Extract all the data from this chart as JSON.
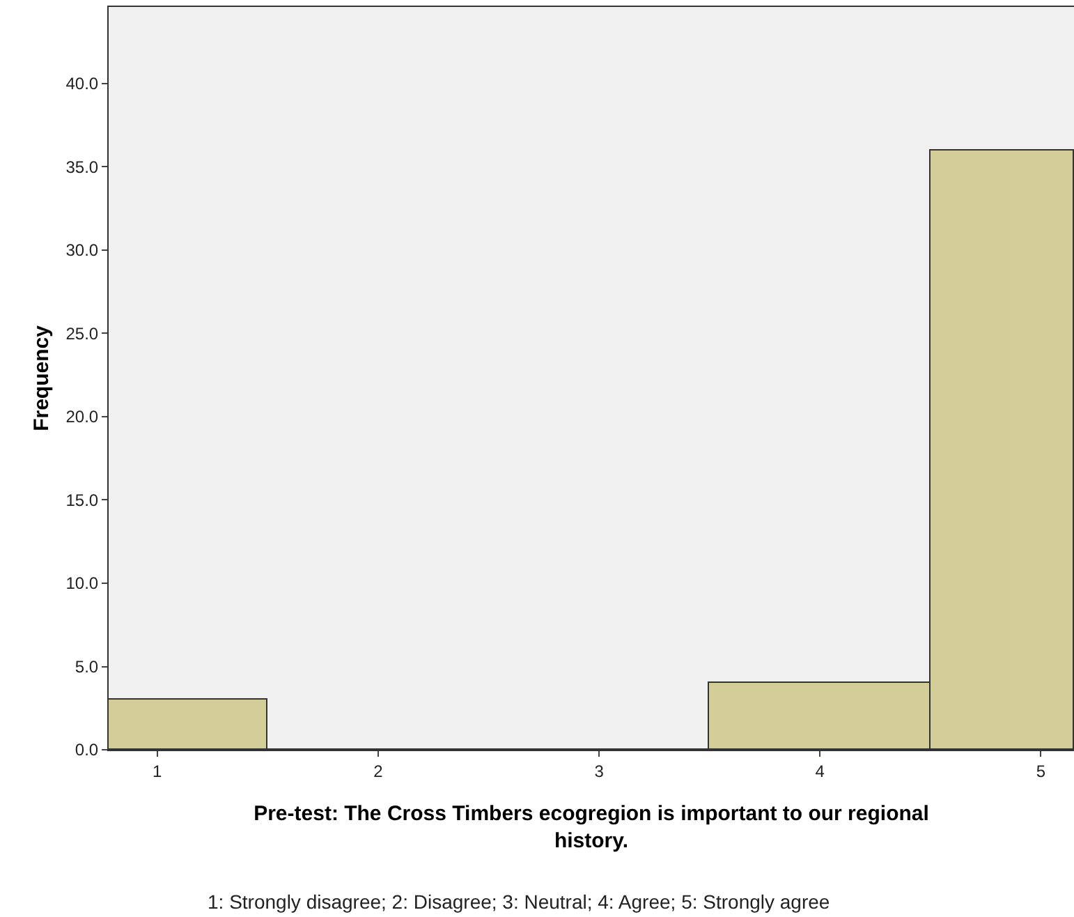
{
  "chart_data": {
    "type": "histogram",
    "xlabel": "Pre-test: The Cross Timbers ecogregion is important to our regional history.",
    "ylabel": "Frequency",
    "bins": [
      0.78,
      1.5,
      3.5,
      4.5,
      5.15
    ],
    "values": [
      3,
      0,
      4,
      36
    ],
    "color": "#d3ce97",
    "xlim": [
      0.78,
      5.15
    ],
    "xticks": [
      1,
      2,
      3,
      4,
      5
    ],
    "ylim": [
      0,
      44.6
    ],
    "yticks": [
      {
        "value": 0,
        "label": "0.0"
      },
      {
        "value": 5,
        "label": "5.0"
      },
      {
        "value": 10,
        "label": "10.0"
      },
      {
        "value": 15,
        "label": "15.0"
      },
      {
        "value": 20,
        "label": "20.0"
      },
      {
        "value": 25,
        "label": "25.0"
      },
      {
        "value": 30,
        "label": "30.0"
      },
      {
        "value": 35,
        "label": "35.0"
      },
      {
        "value": 40,
        "label": "40.0"
      }
    ],
    "annotations": [
      "1: Strongly disagree; 2: Disagree; 3: Neutral; 4: Agree; 5: Strongly agree"
    ]
  }
}
